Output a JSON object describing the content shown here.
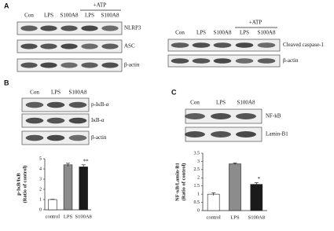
{
  "panel_a": {
    "label": "A",
    "left": {
      "lanes": [
        "Con",
        "LPS",
        "S100A8",
        "LPS",
        "S100A8"
      ],
      "treatment": "+ATP",
      "blots": [
        "NLRP3",
        "ASC",
        "β-actin"
      ]
    },
    "right": {
      "lanes": [
        "Con",
        "LPS",
        "S100A8",
        "LPS",
        "S100A8"
      ],
      "treatment": "+ATP",
      "blots": [
        "Cleaved caspase-1",
        "β-actin"
      ]
    }
  },
  "panel_b": {
    "label": "B",
    "lanes": [
      "Con",
      "LPS",
      "S100A8"
    ],
    "blots": [
      "p-IκB-α",
      "IκB-α",
      "β-actin"
    ],
    "chart": {
      "type": "bar",
      "ylabel": [
        "p-IκB/IκB",
        "(Ratio of control)"
      ],
      "categories": [
        "control",
        "LPS",
        "S100A8"
      ],
      "values": [
        1,
        4.4,
        4.2
      ],
      "errors": [
        0.03,
        0.15,
        0.2
      ],
      "colors": [
        "#ffffff",
        "#8c8c8c",
        "#1a1a1a"
      ],
      "significance": [
        null,
        null,
        "**"
      ],
      "ylim": [
        0,
        5
      ],
      "yticks": [
        0,
        1,
        2,
        3,
        4,
        5
      ]
    }
  },
  "panel_c": {
    "label": "C",
    "lanes": [
      "Con",
      "LPS",
      "S100A8"
    ],
    "blots": [
      "NF-kB",
      "Lamin-B1"
    ],
    "chart": {
      "type": "bar",
      "ylabel": [
        "NF-κB/Lamin-B1",
        "(Ratio of control)"
      ],
      "categories": [
        "control",
        "LPS",
        "S100A8"
      ],
      "values": [
        1,
        2.85,
        1.6
      ],
      "errors": [
        0.08,
        0.06,
        0.1
      ],
      "colors": [
        "#ffffff",
        "#8c8c8c",
        "#1a1a1a"
      ],
      "significance": [
        null,
        null,
        "*"
      ],
      "ylim": [
        0,
        3.5
      ],
      "yticks": [
        0,
        0.5,
        1,
        1.5,
        2,
        2.5,
        3,
        3.5
      ]
    }
  }
}
